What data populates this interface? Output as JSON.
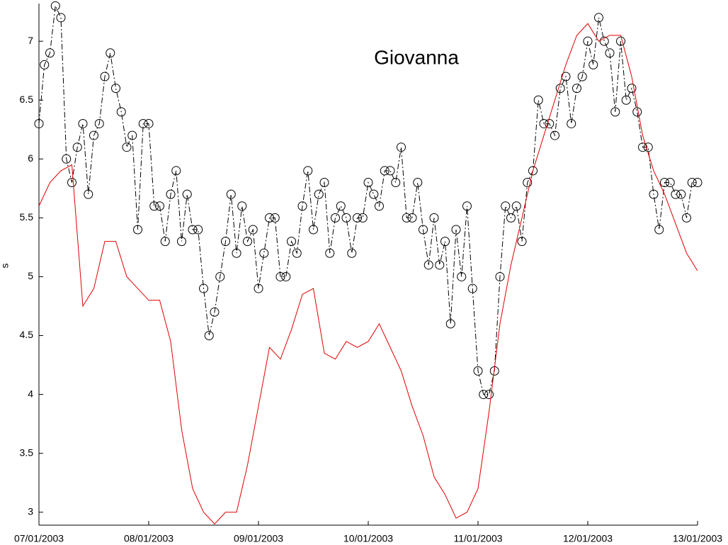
{
  "chart_data": {
    "type": "line",
    "annotation": "Giovanna",
    "y_label": "s",
    "xlim": [
      0,
      6
    ],
    "ylim": [
      2.89,
      7.32
    ],
    "xticks": [
      {
        "value": 0,
        "label": "07/01/2003"
      },
      {
        "value": 1,
        "label": "08/01/2003"
      },
      {
        "value": 2,
        "label": "09/01/2003"
      },
      {
        "value": 3,
        "label": "10/01/2003"
      },
      {
        "value": 4,
        "label": "11/01/2003"
      },
      {
        "value": 5,
        "label": "12/01/2003"
      },
      {
        "value": 6,
        "label": "13/01/2003"
      }
    ],
    "yticks": [
      3,
      3.5,
      4,
      4.5,
      5,
      5.5,
      6,
      6.5,
      7
    ],
    "series": [
      {
        "color": "#000000",
        "linestyle": "dashdot",
        "marker": "circle",
        "x": [
          0,
          0.05,
          0.1,
          0.15,
          0.2,
          0.25,
          0.3,
          0.35,
          0.4,
          0.45,
          0.5,
          0.55,
          0.6,
          0.65,
          0.7,
          0.75,
          0.8,
          0.85,
          0.9,
          0.95,
          1,
          1.05,
          1.1,
          1.15,
          1.2,
          1.25,
          1.3,
          1.35,
          1.4,
          1.45,
          1.5,
          1.55,
          1.6,
          1.65,
          1.7,
          1.75,
          1.8,
          1.85,
          1.9,
          1.95,
          2,
          2.05,
          2.1,
          2.15,
          2.2,
          2.25,
          2.3,
          2.35,
          2.4,
          2.45,
          2.5,
          2.55,
          2.6,
          2.65,
          2.7,
          2.75,
          2.8,
          2.85,
          2.9,
          2.95,
          3,
          3.05,
          3.1,
          3.15,
          3.2,
          3.25,
          3.3,
          3.35,
          3.4,
          3.45,
          3.5,
          3.55,
          3.6,
          3.65,
          3.7,
          3.75,
          3.8,
          3.85,
          3.9,
          3.95,
          4,
          4.05,
          4.1,
          4.15,
          4.2,
          4.25,
          4.3,
          4.35,
          4.4,
          4.45,
          4.5,
          4.55,
          4.6,
          4.65,
          4.7,
          4.75,
          4.8,
          4.85,
          4.9,
          4.95,
          5,
          5.05,
          5.1,
          5.15,
          5.2,
          5.25,
          5.3,
          5.35,
          5.4,
          5.45,
          5.5,
          5.55,
          5.6,
          5.65,
          5.7,
          5.75,
          5.8,
          5.85,
          5.9,
          5.95,
          6
        ],
        "values": [
          6.3,
          6.8,
          6.9,
          7.3,
          7.2,
          6.0,
          5.8,
          6.1,
          6.3,
          5.7,
          6.2,
          6.3,
          6.7,
          6.9,
          6.6,
          6.4,
          6.1,
          6.2,
          5.4,
          6.3,
          6.3,
          5.6,
          5.6,
          5.3,
          5.7,
          5.9,
          5.3,
          5.7,
          5.4,
          5.4,
          4.9,
          4.5,
          4.7,
          5.0,
          5.3,
          5.7,
          5.2,
          5.6,
          5.3,
          5.4,
          4.9,
          5.2,
          5.5,
          5.5,
          5.0,
          5.0,
          5.3,
          5.2,
          5.6,
          5.9,
          5.4,
          5.7,
          5.8,
          5.2,
          5.5,
          5.6,
          5.5,
          5.2,
          5.5,
          5.5,
          5.8,
          5.7,
          5.6,
          5.9,
          5.9,
          5.8,
          6.1,
          5.5,
          5.5,
          5.8,
          5.4,
          5.1,
          5.5,
          5.1,
          5.3,
          4.6,
          5.4,
          5.0,
          5.6,
          4.9,
          4.2,
          4.0,
          4.0,
          4.2,
          5.0,
          5.6,
          5.5,
          5.6,
          5.3,
          5.8,
          5.9,
          6.5,
          6.3,
          6.3,
          6.2,
          6.6,
          6.7,
          6.3,
          6.6,
          6.7,
          7.0,
          6.8,
          7.2,
          7.0,
          6.9,
          6.4,
          7.0,
          6.5,
          6.6,
          6.4,
          6.1,
          6.1,
          5.7,
          5.4,
          5.8,
          5.8,
          5.7,
          5.7,
          5.5,
          5.8,
          5.8
        ]
      },
      {
        "color": "#e00000",
        "linestyle": "solid",
        "marker": "none",
        "x": [
          0,
          0.1,
          0.2,
          0.3,
          0.4,
          0.5,
          0.6,
          0.7,
          0.8,
          0.9,
          1,
          1.1,
          1.2,
          1.3,
          1.4,
          1.5,
          1.6,
          1.7,
          1.8,
          1.9,
          2,
          2.1,
          2.2,
          2.3,
          2.4,
          2.5,
          2.6,
          2.7,
          2.8,
          2.9,
          3,
          3.1,
          3.2,
          3.3,
          3.4,
          3.5,
          3.6,
          3.7,
          3.8,
          3.9,
          4,
          4.1,
          4.2,
          4.3,
          4.4,
          4.5,
          4.6,
          4.7,
          4.8,
          4.9,
          5,
          5.1,
          5.2,
          5.3,
          5.4,
          5.5,
          5.6,
          5.7,
          5.8,
          5.9,
          6
        ],
        "values": [
          5.6,
          5.8,
          5.9,
          5.95,
          4.75,
          4.9,
          5.3,
          5.3,
          5.0,
          4.9,
          4.8,
          4.8,
          4.45,
          3.7,
          3.2,
          3.0,
          2.9,
          3.0,
          3.0,
          3.4,
          3.9,
          4.4,
          4.3,
          4.55,
          4.85,
          4.9,
          4.35,
          4.3,
          4.45,
          4.4,
          4.45,
          4.6,
          4.4,
          4.2,
          3.9,
          3.65,
          3.3,
          3.15,
          2.95,
          3.0,
          3.2,
          3.85,
          4.6,
          5.1,
          5.5,
          5.9,
          6.2,
          6.5,
          6.8,
          7.05,
          7.15,
          7.0,
          7.05,
          7.05,
          6.7,
          6.2,
          5.9,
          5.7,
          5.45,
          5.2,
          5.05
        ]
      }
    ]
  }
}
